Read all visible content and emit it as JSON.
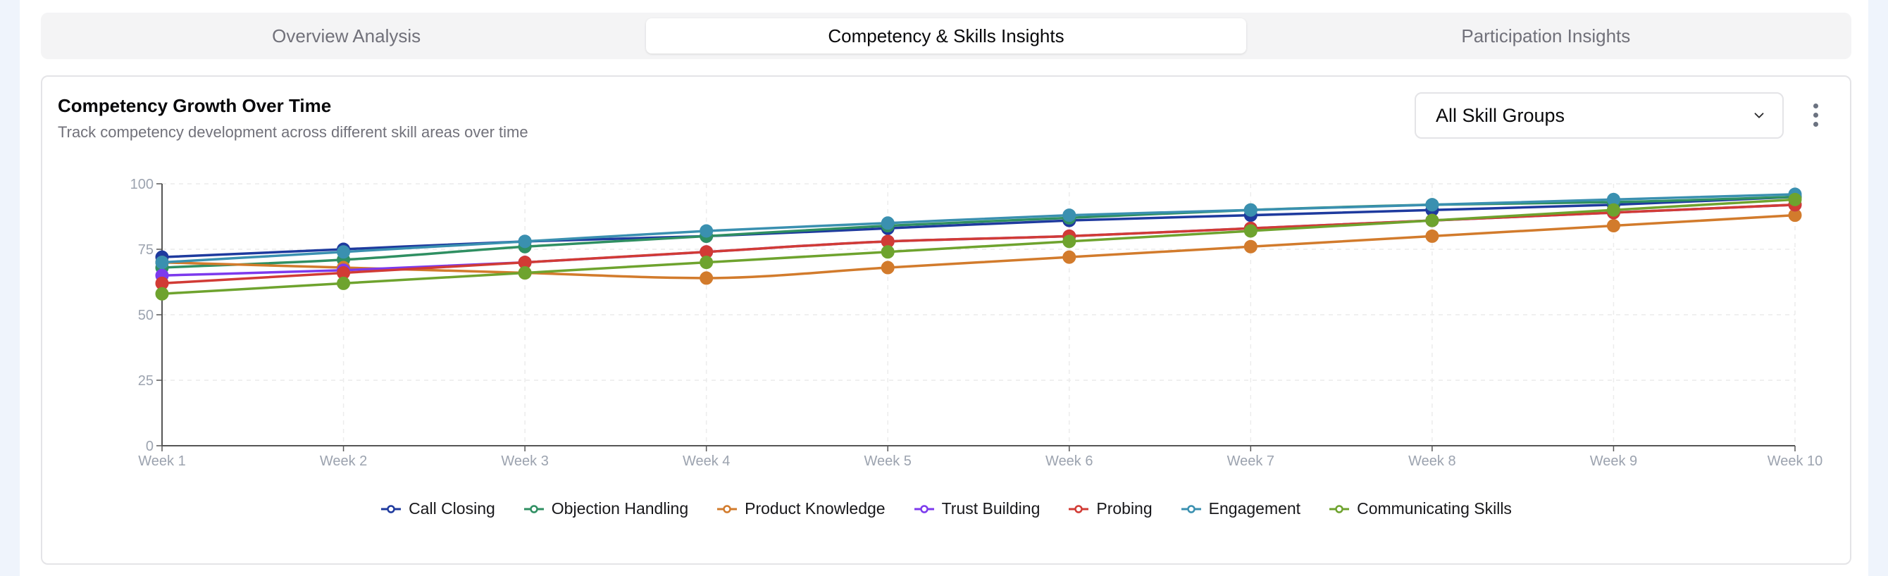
{
  "tabs": [
    {
      "label": "Overview Analysis",
      "active": false
    },
    {
      "label": "Competency & Skills Insights",
      "active": true
    },
    {
      "label": "Participation Insights",
      "active": false
    }
  ],
  "card": {
    "title": "Competency Growth Over Time",
    "subtitle": "Track competency development across different skill areas over time",
    "filter": {
      "selected": "All Skill Groups"
    },
    "menu_icon": "more-vertical-icon"
  },
  "chart_data": {
    "type": "line",
    "title": "Competency Growth Over Time",
    "xlabel": "",
    "ylabel": "",
    "x": [
      "Week 1",
      "Week 2",
      "Week 3",
      "Week 4",
      "Week 5",
      "Week 6",
      "Week 7",
      "Week 8",
      "Week 9",
      "Week 10"
    ],
    "ylim": [
      0,
      100
    ],
    "yticks": [
      0,
      25,
      50,
      75,
      100
    ],
    "grid": true,
    "legend": "bottom-center",
    "series": [
      {
        "name": "Call Closing",
        "color": "#1e3a9e",
        "values": [
          72,
          75,
          78,
          80,
          83,
          86,
          88,
          90,
          92,
          95
        ]
      },
      {
        "name": "Objection Handling",
        "color": "#2f8f62",
        "values": [
          68,
          71,
          76,
          80,
          84,
          87,
          90,
          92,
          93,
          95
        ]
      },
      {
        "name": "Product Knowledge",
        "color": "#d27b2c",
        "values": [
          70,
          68,
          66,
          64,
          68,
          72,
          76,
          80,
          84,
          88
        ]
      },
      {
        "name": "Trust Building",
        "color": "#7c3aed",
        "values": [
          65,
          67,
          70,
          74,
          78,
          80,
          83,
          86,
          89,
          92
        ]
      },
      {
        "name": "Probing",
        "color": "#d13b35",
        "values": [
          62,
          66,
          70,
          74,
          78,
          80,
          83,
          86,
          89,
          92
        ]
      },
      {
        "name": "Engagement",
        "color": "#3a90b0",
        "values": [
          70,
          74,
          78,
          82,
          85,
          88,
          90,
          92,
          94,
          96
        ]
      },
      {
        "name": "Communicating Skills",
        "color": "#6ea32e",
        "values": [
          58,
          62,
          66,
          70,
          74,
          78,
          82,
          86,
          90,
          94
        ]
      }
    ]
  }
}
